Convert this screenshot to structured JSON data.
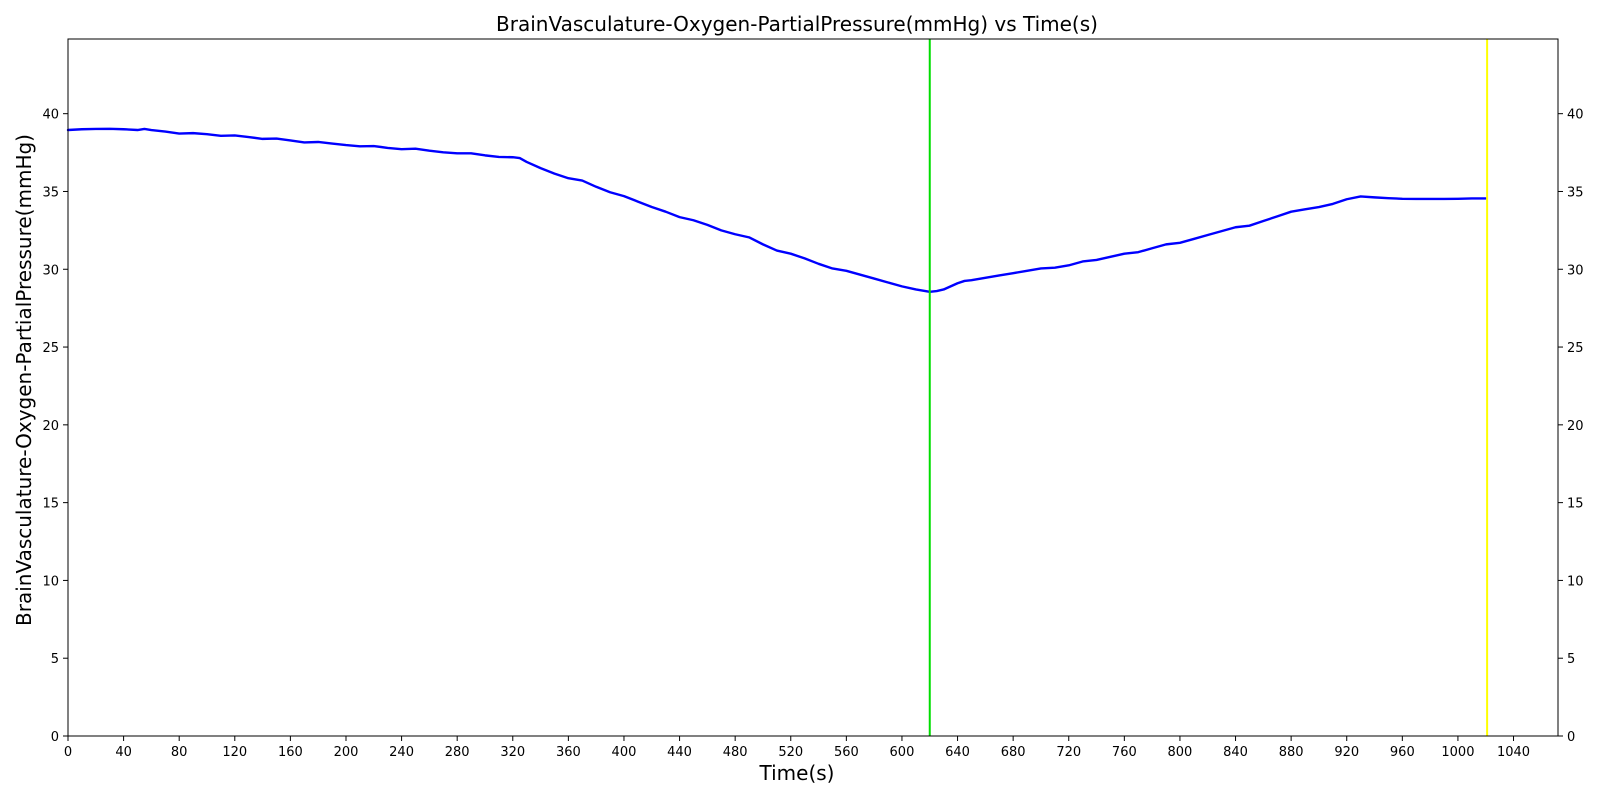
{
  "chart_data": {
    "type": "line",
    "title": "BrainVasculature-Oxygen-PartialPressure(mmHg) vs Time(s)",
    "xlabel": "Time(s)",
    "ylabel": "BrainVasculature-Oxygen-PartialPressure(mmHg)",
    "xlim": [
      0,
      1072
    ],
    "ylim": [
      0,
      44.8
    ],
    "xticks": [
      0,
      40,
      80,
      120,
      160,
      200,
      240,
      280,
      320,
      360,
      400,
      440,
      480,
      520,
      560,
      600,
      640,
      680,
      720,
      760,
      800,
      840,
      880,
      920,
      960,
      1000,
      1040
    ],
    "yticks": [
      0,
      5,
      10,
      15,
      20,
      25,
      30,
      35,
      40
    ],
    "right_y_axis_ticks": true,
    "grid": false,
    "legend": "none",
    "series": [
      {
        "color": "#0000ff",
        "x": [
          0,
          10,
          20,
          30,
          40,
          50,
          55,
          60,
          70,
          80,
          90,
          100,
          110,
          120,
          130,
          140,
          150,
          160,
          170,
          180,
          190,
          200,
          210,
          220,
          230,
          240,
          250,
          260,
          270,
          280,
          290,
          300,
          310,
          320,
          325,
          330,
          340,
          350,
          360,
          370,
          380,
          390,
          400,
          410,
          420,
          430,
          440,
          450,
          460,
          470,
          480,
          490,
          500,
          510,
          520,
          530,
          540,
          550,
          560,
          570,
          580,
          590,
          600,
          610,
          620,
          625,
          630,
          635,
          640,
          645,
          650,
          660,
          670,
          680,
          690,
          700,
          710,
          720,
          730,
          740,
          750,
          760,
          770,
          780,
          790,
          800,
          810,
          820,
          830,
          840,
          850,
          860,
          870,
          880,
          890,
          900,
          910,
          920,
          930,
          940,
          950,
          960,
          970,
          980,
          990,
          1000,
          1010,
          1020
        ],
        "y": [
          38.95,
          39.0,
          39.02,
          39.03,
          39.0,
          38.95,
          39.02,
          38.95,
          38.85,
          38.72,
          38.75,
          38.68,
          38.58,
          38.6,
          38.5,
          38.38,
          38.4,
          38.28,
          38.15,
          38.18,
          38.08,
          37.98,
          37.9,
          37.92,
          37.8,
          37.72,
          37.75,
          37.62,
          37.52,
          37.45,
          37.45,
          37.32,
          37.22,
          37.2,
          37.15,
          36.9,
          36.5,
          36.15,
          35.85,
          35.7,
          35.3,
          34.95,
          34.7,
          34.35,
          34.0,
          33.7,
          33.35,
          33.15,
          32.85,
          32.5,
          32.25,
          32.05,
          31.6,
          31.2,
          31.0,
          30.7,
          30.35,
          30.05,
          29.9,
          29.65,
          29.4,
          29.15,
          28.9,
          28.7,
          28.55,
          28.6,
          28.7,
          28.9,
          29.1,
          29.25,
          29.3,
          29.45,
          29.6,
          29.75,
          29.9,
          30.05,
          30.1,
          30.25,
          30.5,
          30.6,
          30.8,
          31.0,
          31.1,
          31.35,
          31.6,
          31.7,
          31.95,
          32.2,
          32.45,
          32.7,
          32.8,
          33.1,
          33.4,
          33.7,
          33.85,
          34.0,
          34.2,
          34.5,
          34.68,
          34.62,
          34.57,
          34.53,
          34.52,
          34.52,
          34.52,
          34.53,
          34.55,
          34.55
        ]
      }
    ],
    "markers": [
      {
        "x": 620,
        "color": "#00dd00"
      },
      {
        "x": 1021,
        "color": "#ffff00"
      }
    ]
  }
}
